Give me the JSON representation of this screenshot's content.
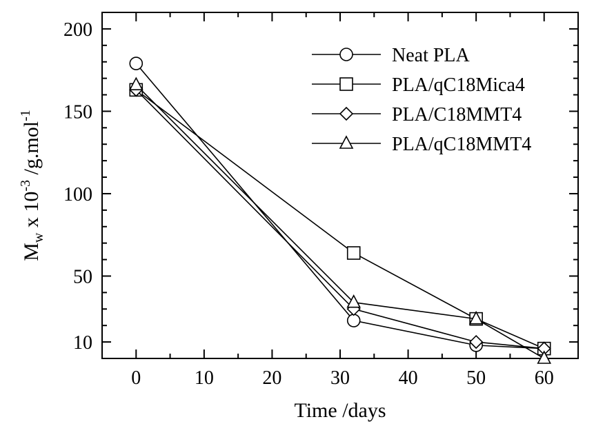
{
  "chart_data": {
    "type": "line",
    "xlabel": "Time /days",
    "ylabel": {
      "symbol": "M",
      "subscript": "w",
      "mid": " x 10",
      "exponent": "-3",
      "unit": " /g.mol",
      "unit_exponent": "-1"
    },
    "xlim": [
      -5,
      65
    ],
    "ylim": [
      0,
      210
    ],
    "xticks": [
      0,
      10,
      20,
      30,
      40,
      50,
      60
    ],
    "yticks": [
      10,
      50,
      100,
      150,
      200
    ],
    "grid": false,
    "legend_position": "top-right",
    "series": [
      {
        "name": "Neat PLA",
        "marker": "circle",
        "x": [
          0,
          32,
          50,
          60
        ],
        "y": [
          179,
          23,
          8,
          6
        ]
      },
      {
        "name": "PLA/qC18Mica4",
        "marker": "square",
        "x": [
          0,
          32,
          50,
          60
        ],
        "y": [
          163,
          64,
          24,
          6
        ]
      },
      {
        "name": "PLA/C18MMT4",
        "marker": "diamond",
        "x": [
          0,
          32,
          50,
          60
        ],
        "y": [
          163,
          30,
          10,
          6
        ]
      },
      {
        "name": "PLA/qC18MMT4",
        "marker": "triangle",
        "x": [
          0,
          32,
          50,
          60
        ],
        "y": [
          166,
          34,
          24,
          0
        ]
      }
    ]
  }
}
